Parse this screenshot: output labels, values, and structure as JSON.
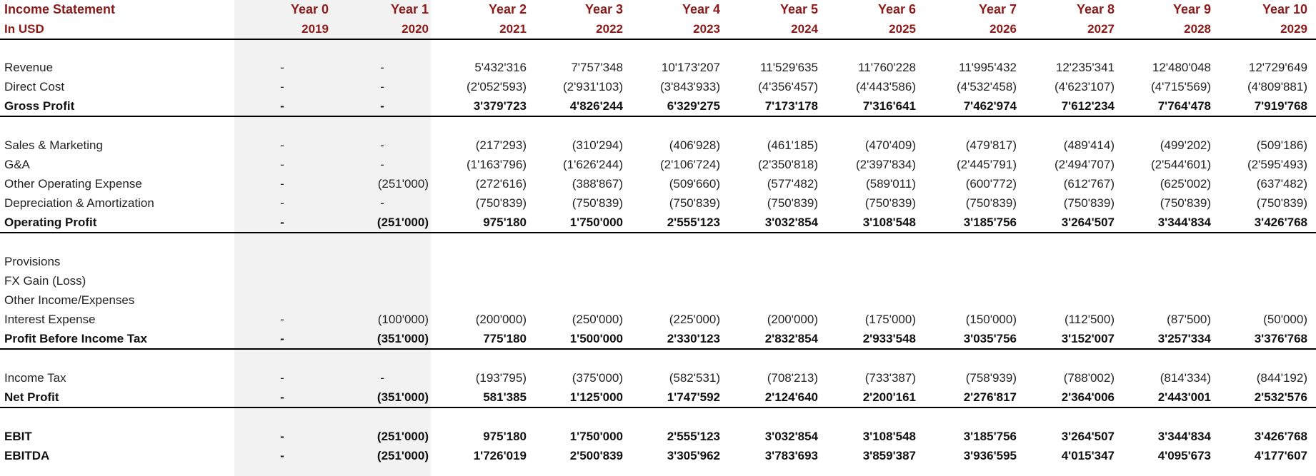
{
  "header": {
    "title": "Income Statement",
    "subtitle": "In USD",
    "years": [
      "Year 0",
      "Year 1",
      "Year 2",
      "Year 3",
      "Year 4",
      "Year 5",
      "Year 6",
      "Year 7",
      "Year 8",
      "Year 9",
      "Year 10"
    ],
    "calendar": [
      "2019",
      "2020",
      "2021",
      "2022",
      "2023",
      "2024",
      "2025",
      "2026",
      "2027",
      "2028",
      "2029"
    ]
  },
  "rows": [
    {
      "type": "spacer"
    },
    {
      "type": "item",
      "label": "Revenue",
      "values": [
        "-",
        "-",
        "5'432'316",
        "7'757'348",
        "10'173'207",
        "11'529'635",
        "11'760'228",
        "11'995'432",
        "12'235'341",
        "12'480'048",
        "12'729'649"
      ]
    },
    {
      "type": "item",
      "label": "Direct Cost",
      "values": [
        "-",
        "-",
        "(2'052'593)",
        "(2'931'103)",
        "(3'843'933)",
        "(4'356'457)",
        "(4'443'586)",
        "(4'532'458)",
        "(4'623'107)",
        "(4'715'569)",
        "(4'809'881)"
      ]
    },
    {
      "type": "total",
      "label": "Gross Profit",
      "values": [
        "-",
        "-",
        "3'379'723",
        "4'826'244",
        "6'329'275",
        "7'173'178",
        "7'316'641",
        "7'462'974",
        "7'612'234",
        "7'764'478",
        "7'919'768"
      ]
    },
    {
      "type": "rule"
    },
    {
      "type": "item",
      "label": "Sales & Marketing",
      "values": [
        "-",
        "-",
        "(217'293)",
        "(310'294)",
        "(406'928)",
        "(461'185)",
        "(470'409)",
        "(479'817)",
        "(489'414)",
        "(499'202)",
        "(509'186)"
      ]
    },
    {
      "type": "item",
      "label": "G&A",
      "values": [
        "-",
        "-",
        "(1'163'796)",
        "(1'626'244)",
        "(2'106'724)",
        "(2'350'818)",
        "(2'397'834)",
        "(2'445'791)",
        "(2'494'707)",
        "(2'544'601)",
        "(2'595'493)"
      ]
    },
    {
      "type": "item",
      "label": "Other Operating Expense",
      "values": [
        "-",
        "(251'000)",
        "(272'616)",
        "(388'867)",
        "(509'660)",
        "(577'482)",
        "(589'011)",
        "(600'772)",
        "(612'767)",
        "(625'002)",
        "(637'482)"
      ]
    },
    {
      "type": "item",
      "label": "Depreciation & Amortization",
      "values": [
        "-",
        "-",
        "(750'839)",
        "(750'839)",
        "(750'839)",
        "(750'839)",
        "(750'839)",
        "(750'839)",
        "(750'839)",
        "(750'839)",
        "(750'839)"
      ]
    },
    {
      "type": "total",
      "label": "Operating Profit",
      "values": [
        "-",
        "(251'000)",
        "975'180",
        "1'750'000",
        "2'555'123",
        "3'032'854",
        "3'108'548",
        "3'185'756",
        "3'264'507",
        "3'344'834",
        "3'426'768"
      ]
    },
    {
      "type": "rule"
    },
    {
      "type": "item",
      "label": "Provisions",
      "values": [
        "",
        "",
        "",
        "",
        "",
        "",
        "",
        "",
        "",
        "",
        ""
      ]
    },
    {
      "type": "item",
      "label": "FX Gain (Loss)",
      "values": [
        "",
        "",
        "",
        "",
        "",
        "",
        "",
        "",
        "",
        "",
        ""
      ]
    },
    {
      "type": "item",
      "label": "Other Income/Expenses",
      "values": [
        "",
        "",
        "",
        "",
        "",
        "",
        "",
        "",
        "",
        "",
        ""
      ]
    },
    {
      "type": "item",
      "label": "Interest Expense",
      "values": [
        "-",
        "(100'000)",
        "(200'000)",
        "(250'000)",
        "(225'000)",
        "(200'000)",
        "(175'000)",
        "(150'000)",
        "(112'500)",
        "(87'500)",
        "(50'000)"
      ]
    },
    {
      "type": "total",
      "label": "Profit Before Income Tax",
      "values": [
        "-",
        "(351'000)",
        "775'180",
        "1'500'000",
        "2'330'123",
        "2'832'854",
        "2'933'548",
        "3'035'756",
        "3'152'007",
        "3'257'334",
        "3'376'768"
      ]
    },
    {
      "type": "rule"
    },
    {
      "type": "item",
      "label": "Income Tax",
      "values": [
        "-",
        "-",
        "(193'795)",
        "(375'000)",
        "(582'531)",
        "(708'213)",
        "(733'387)",
        "(758'939)",
        "(788'002)",
        "(814'334)",
        "(844'192)"
      ]
    },
    {
      "type": "total",
      "label": "Net Profit",
      "values": [
        "-",
        "(351'000)",
        "581'385",
        "1'125'000",
        "1'747'592",
        "2'124'640",
        "2'200'161",
        "2'276'817",
        "2'364'006",
        "2'443'001",
        "2'532'576"
      ]
    },
    {
      "type": "rule"
    },
    {
      "type": "total",
      "label": "EBIT",
      "values": [
        "-",
        "(251'000)",
        "975'180",
        "1'750'000",
        "2'555'123",
        "3'032'854",
        "3'108'548",
        "3'185'756",
        "3'264'507",
        "3'344'834",
        "3'426'768"
      ]
    },
    {
      "type": "total",
      "label": "EBITDA",
      "values": [
        "-",
        "(251'000)",
        "1'726'019",
        "2'500'839",
        "3'305'962",
        "3'783'693",
        "3'859'387",
        "3'936'595",
        "4'015'347",
        "4'095'673",
        "4'177'607"
      ]
    }
  ]
}
